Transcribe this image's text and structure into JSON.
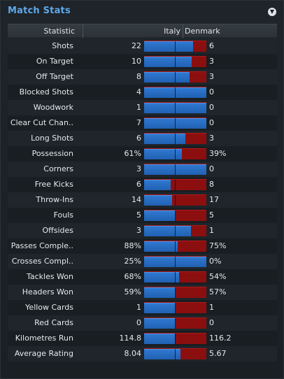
{
  "panel": {
    "title": "Match Stats",
    "menu_icon": "chevron-down-icon",
    "header": {
      "statistic": "Statistic",
      "team1": "Italy",
      "team2": "Denmark"
    },
    "colors": {
      "team1": "#1f5fb0",
      "team2": "#8c0f0f",
      "title": "#5fa8e8"
    }
  },
  "stats": [
    {
      "label": "Shots",
      "v1": "22",
      "v2": "6",
      "share1": 0.786
    },
    {
      "label": "On Target",
      "v1": "10",
      "v2": "3",
      "share1": 0.769
    },
    {
      "label": "Off Target",
      "v1": "8",
      "v2": "3",
      "share1": 0.727
    },
    {
      "label": "Blocked Shots",
      "v1": "4",
      "v2": "0",
      "share1": 1.0
    },
    {
      "label": "Woodwork",
      "v1": "1",
      "v2": "0",
      "share1": 1.0
    },
    {
      "label": "Clear Cut Chan..",
      "v1": "7",
      "v2": "0",
      "share1": 1.0
    },
    {
      "label": "Long Shots",
      "v1": "6",
      "v2": "3",
      "share1": 0.667
    },
    {
      "label": "Possession",
      "v1": "61%",
      "v2": "39%",
      "share1": 0.61
    },
    {
      "label": "Corners",
      "v1": "3",
      "v2": "0",
      "share1": 1.0
    },
    {
      "label": "Free Kicks",
      "v1": "6",
      "v2": "8",
      "share1": 0.429
    },
    {
      "label": "Throw-Ins",
      "v1": "14",
      "v2": "17",
      "share1": 0.452
    },
    {
      "label": "Fouls",
      "v1": "5",
      "v2": "5",
      "share1": 0.5
    },
    {
      "label": "Offsides",
      "v1": "3",
      "v2": "1",
      "share1": 0.75
    },
    {
      "label": "Passes Comple..",
      "v1": "88%",
      "v2": "75%",
      "share1": 0.54
    },
    {
      "label": "Crosses Compl..",
      "v1": "25%",
      "v2": "0%",
      "share1": 1.0
    },
    {
      "label": "Tackles Won",
      "v1": "68%",
      "v2": "54%",
      "share1": 0.557
    },
    {
      "label": "Headers Won",
      "v1": "59%",
      "v2": "57%",
      "share1": 0.509
    },
    {
      "label": "Yellow Cards",
      "v1": "1",
      "v2": "1",
      "share1": 0.5
    },
    {
      "label": "Red Cards",
      "v1": "0",
      "v2": "0",
      "share1": 0.5
    },
    {
      "label": "Kilometres Run",
      "v1": "114.8",
      "v2": "116.2",
      "share1": 0.497
    },
    {
      "label": "Average Rating",
      "v1": "8.04",
      "v2": "5.67",
      "share1": 0.586
    }
  ]
}
